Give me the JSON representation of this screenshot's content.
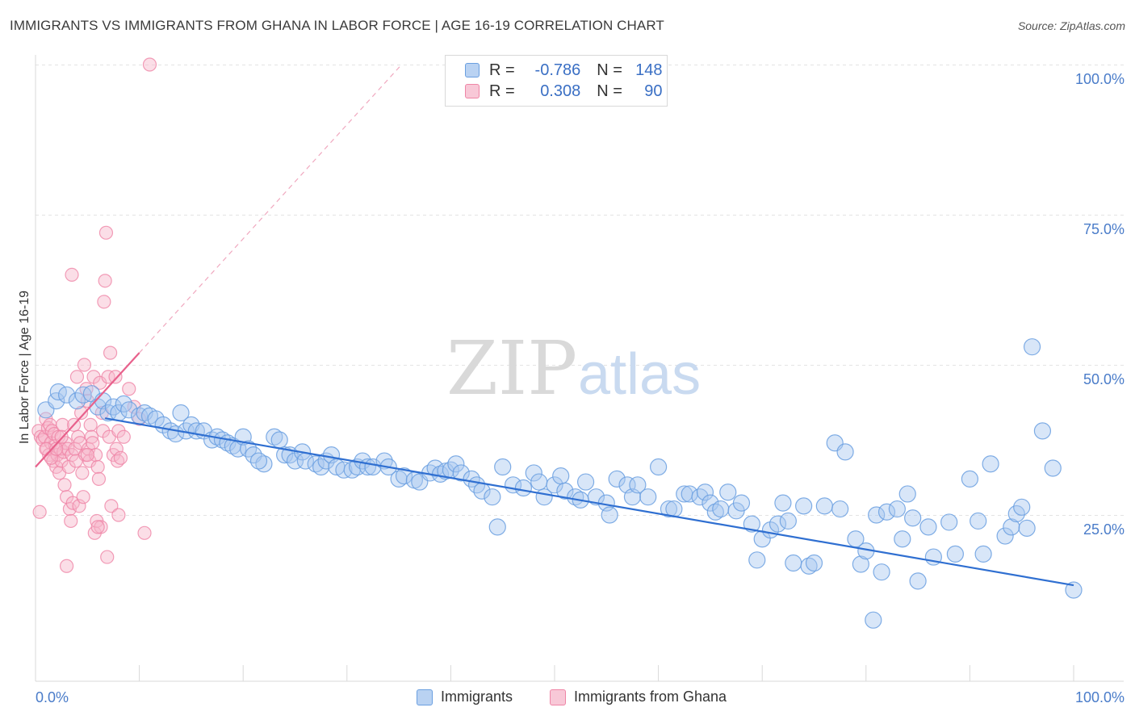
{
  "title": "IMMIGRANTS VS IMMIGRANTS FROM GHANA IN LABOR FORCE | AGE 16-19 CORRELATION CHART",
  "source": "Source: ZipAtlas.com",
  "watermark": {
    "zip": "ZIP",
    "atlas": "atlas"
  },
  "legend": {
    "rows": [
      {
        "r_label": "R =",
        "r_value": "-0.786",
        "n_label": "N =",
        "n_value": "148",
        "color": "#6a9fe0"
      },
      {
        "r_label": "R =",
        "r_value": "0.308",
        "n_label": "N =",
        "n_value": "90",
        "color": "#ef85a6"
      }
    ]
  },
  "bottom_legend": {
    "items": [
      {
        "label": "Immigrants",
        "color": "#6a9fe0"
      },
      {
        "label": "Immigrants from Ghana",
        "color": "#ef85a6"
      }
    ]
  },
  "chart_data": {
    "type": "scatter",
    "title": "IMMIGRANTS VS IMMIGRANTS FROM GHANA IN LABOR FORCE | AGE 16-19 CORRELATION CHART",
    "xlabel": "",
    "ylabel": "In Labor Force | Age 16-19",
    "xlim": [
      0,
      100
    ],
    "ylim": [
      0,
      100
    ],
    "x_tick_labels": [
      "0.0%",
      "100.0%"
    ],
    "y_ticks": [
      25,
      50,
      75,
      100
    ],
    "y_tick_labels": [
      "25.0%",
      "50.0%",
      "75.0%",
      "100.0%"
    ],
    "grid": true,
    "legend_position": "top-center",
    "series": [
      {
        "name": "Immigrants",
        "color": "#6a9fe0",
        "trend": {
          "x": [
            6.7,
            100
          ],
          "y": [
            41.1,
            13.3
          ]
        },
        "points": [
          [
            1,
            42.5
          ],
          [
            2,
            44
          ],
          [
            2.2,
            45.5
          ],
          [
            3,
            45
          ],
          [
            4,
            44
          ],
          [
            4.6,
            45
          ],
          [
            5.4,
            45.2
          ],
          [
            6,
            43
          ],
          [
            6.5,
            44
          ],
          [
            7,
            42
          ],
          [
            7.5,
            43
          ],
          [
            8,
            42
          ],
          [
            8.5,
            43.5
          ],
          [
            9,
            42.5
          ],
          [
            10,
            41.5
          ],
          [
            10.5,
            42
          ],
          [
            11,
            41.5
          ],
          [
            11.6,
            41
          ],
          [
            12.3,
            40
          ],
          [
            13,
            39
          ],
          [
            13.5,
            38.5
          ],
          [
            14,
            42
          ],
          [
            14.5,
            39
          ],
          [
            15,
            40
          ],
          [
            15.5,
            39
          ],
          [
            16.2,
            39
          ],
          [
            17,
            37.5
          ],
          [
            17.5,
            38
          ],
          [
            18,
            37.5
          ],
          [
            18.5,
            37
          ],
          [
            19,
            36.5
          ],
          [
            19.5,
            36
          ],
          [
            20,
            38
          ],
          [
            20.5,
            36
          ],
          [
            21,
            35
          ],
          [
            22,
            33.5
          ],
          [
            21.5,
            34
          ],
          [
            23,
            38
          ],
          [
            23.5,
            37.5
          ],
          [
            24,
            35
          ],
          [
            24.5,
            35
          ],
          [
            25,
            34
          ],
          [
            25.7,
            35.5
          ],
          [
            26,
            34
          ],
          [
            27,
            33.5
          ],
          [
            27.5,
            33
          ],
          [
            28,
            34
          ],
          [
            28.5,
            35
          ],
          [
            29,
            33
          ],
          [
            29.7,
            32.5
          ],
          [
            30.5,
            32.5
          ],
          [
            31,
            33
          ],
          [
            31.5,
            34
          ],
          [
            32,
            33
          ],
          [
            32.5,
            33
          ],
          [
            33.6,
            34
          ],
          [
            34,
            33
          ],
          [
            35,
            31
          ],
          [
            35.5,
            31.5
          ],
          [
            36.5,
            30.8
          ],
          [
            37,
            30.5
          ],
          [
            38,
            32
          ],
          [
            38.5,
            32.8
          ],
          [
            39,
            31.8
          ],
          [
            39.5,
            32.3
          ],
          [
            40,
            32.5
          ],
          [
            40.5,
            33.5
          ],
          [
            41,
            32
          ],
          [
            42,
            31
          ],
          [
            42.5,
            30
          ],
          [
            43,
            29
          ],
          [
            44,
            28
          ],
          [
            44.5,
            23
          ],
          [
            45,
            33
          ],
          [
            46,
            30
          ],
          [
            47,
            29.5
          ],
          [
            48,
            32
          ],
          [
            48.5,
            30.5
          ],
          [
            49,
            28
          ],
          [
            50,
            30
          ],
          [
            50.6,
            31.5
          ],
          [
            51,
            29
          ],
          [
            52,
            28
          ],
          [
            52.5,
            27.5
          ],
          [
            53,
            30.5
          ],
          [
            54,
            28
          ],
          [
            55,
            27
          ],
          [
            55.3,
            25
          ],
          [
            56,
            31
          ],
          [
            57,
            30
          ],
          [
            57.5,
            28
          ],
          [
            58,
            30
          ],
          [
            59,
            28
          ],
          [
            60,
            33
          ],
          [
            61,
            26
          ],
          [
            61.5,
            26
          ],
          [
            62.5,
            28.5
          ],
          [
            63,
            28.5
          ],
          [
            64,
            28
          ],
          [
            64.5,
            28.8
          ],
          [
            65,
            27
          ],
          [
            65.5,
            25.5
          ],
          [
            66,
            26
          ],
          [
            66.7,
            28.8
          ],
          [
            67.5,
            25.7
          ],
          [
            68,
            27
          ],
          [
            69,
            23.5
          ],
          [
            69.5,
            17.5
          ],
          [
            70,
            21
          ],
          [
            70.8,
            22.5
          ],
          [
            71.5,
            23.5
          ],
          [
            72,
            27
          ],
          [
            72.5,
            24
          ],
          [
            73,
            17
          ],
          [
            74,
            26.5
          ],
          [
            74.5,
            16.5
          ],
          [
            75,
            17
          ],
          [
            76,
            26.5
          ],
          [
            77,
            37
          ],
          [
            77.5,
            26
          ],
          [
            78,
            35.5
          ],
          [
            79,
            21
          ],
          [
            79.5,
            16.8
          ],
          [
            80,
            19
          ],
          [
            80.7,
            7.5
          ],
          [
            81,
            25
          ],
          [
            81.5,
            15.5
          ],
          [
            82,
            25.5
          ],
          [
            83,
            26
          ],
          [
            83.5,
            21
          ],
          [
            84,
            28.5
          ],
          [
            84.5,
            24.5
          ],
          [
            85,
            14
          ],
          [
            86,
            23
          ],
          [
            86.5,
            18
          ],
          [
            88,
            23.8
          ],
          [
            88.6,
            18.5
          ],
          [
            90,
            31
          ],
          [
            90.8,
            24
          ],
          [
            91.3,
            18.5
          ],
          [
            92,
            33.5
          ],
          [
            93.4,
            21.5
          ],
          [
            94,
            23
          ],
          [
            94.5,
            25.2
          ],
          [
            95,
            26.3
          ],
          [
            95.5,
            22.8
          ],
          [
            96,
            53
          ],
          [
            97,
            39
          ],
          [
            98,
            32.8
          ],
          [
            100,
            12.5
          ]
        ]
      },
      {
        "name": "Immigrants from Ghana",
        "color": "#ef85a6",
        "trend": {
          "x": [
            0,
            10
          ],
          "y": [
            33,
            52
          ]
        },
        "points": [
          [
            0.3,
            39
          ],
          [
            0.5,
            38
          ],
          [
            0.7,
            37.5
          ],
          [
            0.9,
            38
          ],
          [
            1,
            41
          ],
          [
            1.1,
            36
          ],
          [
            1.2,
            39.5
          ],
          [
            1.3,
            35
          ],
          [
            1.4,
            40
          ],
          [
            1.5,
            37
          ],
          [
            1.6,
            39
          ],
          [
            1.7,
            34
          ],
          [
            1.8,
            38.5
          ],
          [
            1.9,
            36.5
          ],
          [
            2,
            33
          ],
          [
            2.1,
            35
          ],
          [
            2.2,
            38
          ],
          [
            2.3,
            32
          ],
          [
            2.4,
            36
          ],
          [
            2.5,
            34
          ],
          [
            2.6,
            40
          ],
          [
            2.7,
            35.5
          ],
          [
            2.8,
            30
          ],
          [
            2.9,
            37
          ],
          [
            3,
            28
          ],
          [
            3.1,
            36
          ],
          [
            3.2,
            33
          ],
          [
            3.3,
            26
          ],
          [
            3.4,
            24
          ],
          [
            3.5,
            35
          ],
          [
            3.6,
            27
          ],
          [
            3.7,
            40
          ],
          [
            3.8,
            36
          ],
          [
            3.9,
            34
          ],
          [
            4,
            48
          ],
          [
            4.1,
            38
          ],
          [
            4.2,
            26.5
          ],
          [
            4.3,
            37
          ],
          [
            4.4,
            42
          ],
          [
            4.5,
            32
          ],
          [
            4.6,
            28
          ],
          [
            4.7,
            50
          ],
          [
            4.8,
            35
          ],
          [
            4.9,
            46
          ],
          [
            5,
            44
          ],
          [
            5.1,
            36
          ],
          [
            5.2,
            34
          ],
          [
            5.3,
            40
          ],
          [
            5.4,
            38
          ],
          [
            5.5,
            37
          ],
          [
            5.6,
            48
          ],
          [
            5.7,
            22
          ],
          [
            5.8,
            35
          ],
          [
            5.9,
            24
          ],
          [
            6,
            33
          ],
          [
            6.1,
            31
          ],
          [
            6.2,
            47
          ],
          [
            6.3,
            23
          ],
          [
            6.4,
            42
          ],
          [
            6.5,
            39
          ],
          [
            6.6,
            60.5
          ],
          [
            6.7,
            64
          ],
          [
            6.8,
            72
          ],
          [
            6.9,
            18
          ],
          [
            7,
            48
          ],
          [
            7.1,
            38
          ],
          [
            7.2,
            52
          ],
          [
            7.3,
            26.5
          ],
          [
            7.5,
            35
          ],
          [
            7.7,
            48
          ],
          [
            7.8,
            36
          ],
          [
            7.9,
            34
          ],
          [
            8,
            39
          ],
          [
            8,
            25
          ],
          [
            8.2,
            34.5
          ],
          [
            8.5,
            38
          ],
          [
            9,
            46
          ],
          [
            9.5,
            43
          ],
          [
            10,
            41
          ],
          [
            10.5,
            22
          ],
          [
            11,
            100
          ],
          [
            0.4,
            25.5
          ],
          [
            1,
            36
          ],
          [
            1.5,
            34.5
          ],
          [
            2,
            36
          ],
          [
            2.5,
            38
          ],
          [
            3,
            16.5
          ],
          [
            3.5,
            65
          ],
          [
            5,
            35
          ],
          [
            6,
            23
          ]
        ]
      }
    ]
  }
}
